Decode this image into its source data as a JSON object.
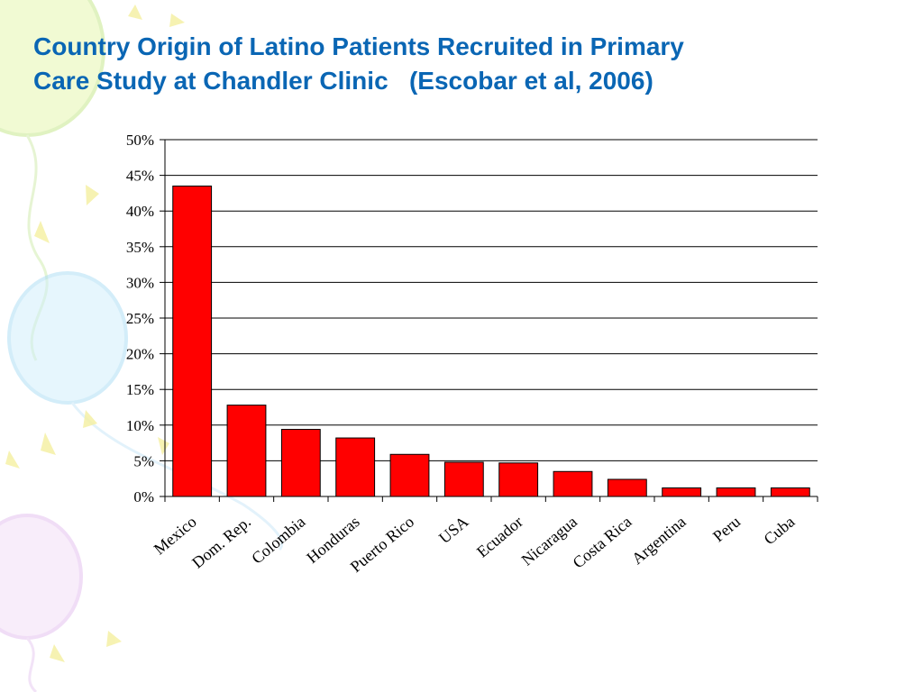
{
  "slide": {
    "title_line1": "Country Origin of Latino Patients Recruited in Primary",
    "title_line2": "Care Study at Chandler Clinic   (Escobar et al, 2006)"
  },
  "colors": {
    "title": "#0a66b4",
    "bar_fill": "#ff0000",
    "bar_stroke": "#000000",
    "grid": "#000000"
  },
  "chart_data": {
    "type": "bar",
    "title": "Country Origin of Latino Patients Recruited in Primary Care Study at Chandler Clinic (Escobar et al, 2006)",
    "xlabel": "",
    "ylabel": "",
    "ylim": [
      0,
      50
    ],
    "y_ticks": [
      0,
      5,
      10,
      15,
      20,
      25,
      30,
      35,
      40,
      45,
      50
    ],
    "y_tick_labels": [
      "0%",
      "5%",
      "10%",
      "15%",
      "20%",
      "25%",
      "30%",
      "35%",
      "40%",
      "45%",
      "50%"
    ],
    "grid": true,
    "categories": [
      "Mexico",
      "Dom. Rep.",
      "Colombia",
      "Honduras",
      "Puerto Rico",
      "USA",
      "Ecuador",
      "Nicaragua",
      "Costa Rica",
      "Argentina",
      "Peru",
      "Cuba"
    ],
    "values": [
      43.5,
      12.8,
      9.4,
      8.2,
      5.9,
      4.8,
      4.7,
      3.5,
      2.4,
      1.2,
      1.2,
      1.2
    ]
  }
}
